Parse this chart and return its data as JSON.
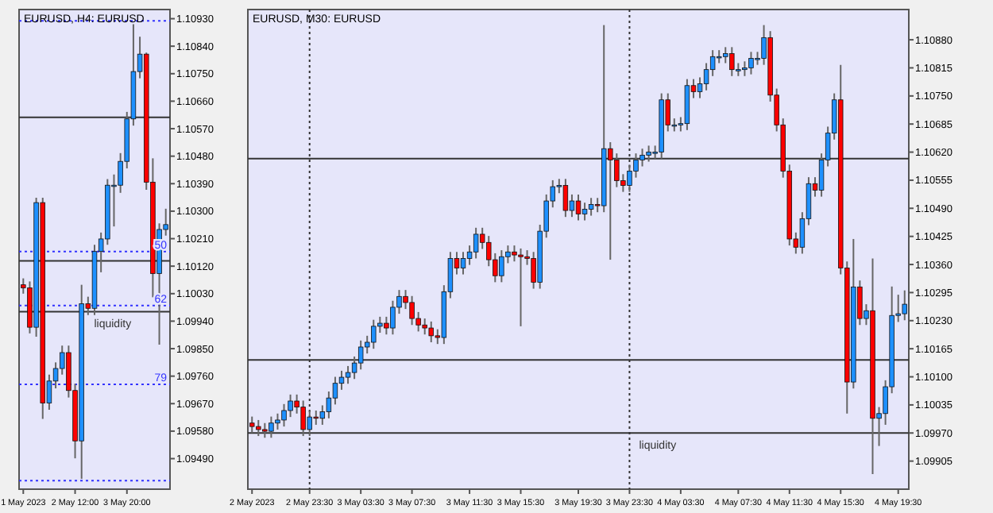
{
  "chart_data": [
    {
      "type": "candlestick",
      "title": "EURUSD, H4: EURUSD",
      "colors": [
        "#ff0000",
        "#ff0000",
        "#1e90ff",
        "#ff0000",
        "#1e90ff",
        "#1e90ff",
        "#1e90ff",
        "#ff0000",
        "#ff0000",
        "#1e90ff",
        "#ff0000",
        "#1e90ff",
        "#1e90ff",
        "#1e90ff",
        "#1e90ff",
        "#1e90ff",
        "#1e90ff",
        "#1e90ff",
        "#1e90ff",
        "#ff0000",
        "#ff0000",
        "#1e90ff",
        "#1e90ff"
      ],
      "annotations": [
        {
          "text": "50",
          "y": 1.10168
        },
        {
          "text": "62",
          "y": 1.09991
        },
        {
          "text": "79",
          "y": 1.09733
        }
      ],
      "categories": [
        "1 May 2023",
        null,
        null,
        null,
        null,
        null,
        null,
        null,
        "2 May 12:00",
        null,
        null,
        null,
        null,
        null,
        null,
        null,
        "3 May 20:00",
        null,
        null,
        null,
        null,
        null,
        null
      ],
      "ohlc": [
        [
          1.10059,
          1.1008,
          1.1003,
          1.10049
        ],
        [
          1.10049,
          1.1007,
          1.099,
          1.0992
        ],
        [
          1.0992,
          1.10344,
          1.09889,
          1.10328
        ],
        [
          1.10328,
          1.10344,
          1.0962,
          1.09672
        ],
        [
          1.09672,
          1.09765,
          1.0965,
          1.09744
        ],
        [
          1.09744,
          1.09805,
          1.0972,
          1.09785
        ],
        [
          1.09785,
          1.0986,
          1.09765,
          1.09837
        ],
        [
          1.09837,
          1.0986,
          1.0969,
          1.09713
        ],
        [
          1.09713,
          1.09735,
          1.09491,
          1.09548
        ],
        [
          1.09548,
          1.10059,
          1.09424,
          1.09997
        ],
        [
          1.09997,
          1.1002,
          1.0996,
          1.09982
        ],
        [
          1.09982,
          1.1019,
          1.0996,
          1.10168
        ],
        [
          1.10168,
          1.1023,
          1.101,
          1.10209
        ],
        [
          1.10209,
          1.10405,
          1.1019,
          1.10385
        ],
        [
          1.10385,
          1.1042,
          1.1025,
          1.10385
        ],
        [
          1.10385,
          1.1049,
          1.1036,
          1.10463
        ],
        [
          1.10463,
          1.10625,
          1.1044,
          1.10602
        ],
        [
          1.10602,
          1.10912,
          1.1058,
          1.10757
        ],
        [
          1.10757,
          1.10871,
          1.10735,
          1.10814
        ],
        [
          1.10814,
          1.10819,
          1.1037,
          1.10395
        ],
        [
          1.10395,
          1.10473,
          1.10018,
          1.10096
        ],
        [
          1.10096,
          1.1026,
          1.09863,
          1.1024
        ],
        [
          1.1024,
          1.10308,
          1.1022,
          1.10256
        ]
      ],
      "ylim": [
        1.0939,
        1.1096
      ],
      "yticks": [
        {
          "value": 1.0949,
          "label": "1.09490"
        },
        {
          "value": 1.0958,
          "label": "1.09580"
        },
        {
          "value": 1.0967,
          "label": "1.09670"
        },
        {
          "value": 1.0976,
          "label": "1.09760"
        },
        {
          "value": 1.0985,
          "label": "1.09850"
        },
        {
          "value": 1.0994,
          "label": "1.09940"
        },
        {
          "value": 1.1003,
          "label": "1.10030"
        },
        {
          "value": 1.1012,
          "label": "1.10120"
        },
        {
          "value": 1.1021,
          "label": "1.10210"
        },
        {
          "value": 1.103,
          "label": "1.10300"
        },
        {
          "value": 1.1039,
          "label": "1.10390"
        },
        {
          "value": 1.1048,
          "label": "1.10480"
        },
        {
          "value": 1.1057,
          "label": "1.10570"
        },
        {
          "value": 1.1066,
          "label": "1.10660"
        },
        {
          "value": 1.1075,
          "label": "1.10750"
        },
        {
          "value": 1.1084,
          "label": "1.10840"
        },
        {
          "value": 1.1093,
          "label": "1.10930"
        }
      ],
      "ref_lines": [
        {
          "axis": "y",
          "value": 1.10607,
          "color": "#333333",
          "line_style": "solid"
        },
        {
          "axis": "y",
          "value": 1.10137,
          "color": "#333333",
          "line_style": "solid"
        },
        {
          "axis": "y",
          "value": 1.09971,
          "label": "liquidity",
          "color": "#333333",
          "line_style": "solid"
        },
        {
          "axis": "y",
          "value": 1.10923,
          "color": "#3333ff",
          "line_style": "dotted"
        },
        {
          "axis": "y",
          "value": 1.10168,
          "color": "#3333ff",
          "line_style": "dotted"
        },
        {
          "axis": "y",
          "value": 1.09991,
          "color": "#3333ff",
          "line_style": "dotted"
        },
        {
          "axis": "y",
          "value": 1.09733,
          "color": "#3333ff",
          "line_style": "dotted"
        },
        {
          "axis": "y",
          "value": 1.09418,
          "color": "#3333ff",
          "line_style": "dotted"
        }
      ]
    },
    {
      "type": "candlestick",
      "title": "EURUSD, M30: EURUSD",
      "colors": [
        "#ff0000",
        "#ff0000",
        "#ff0000",
        "#1e90ff",
        "#1e90ff",
        "#1e90ff",
        "#1e90ff",
        "#ff0000",
        "#ff0000",
        "#1e90ff",
        "#ff0000",
        "#1e90ff",
        "#1e90ff",
        "#1e90ff",
        "#1e90ff",
        "#1e90ff",
        "#1e90ff",
        "#1e90ff",
        "#1e90ff",
        "#1e90ff",
        "#1e90ff",
        "#ff0000",
        "#1e90ff",
        "#1e90ff",
        "#ff0000",
        "#ff0000",
        "#ff0000",
        "#ff0000",
        "#ff0000",
        "#ff0000",
        "#1e90ff",
        "#1e90ff",
        "#ff0000",
        "#1e90ff",
        "#1e90ff",
        "#1e90ff",
        "#ff0000",
        "#ff0000",
        "#ff0000",
        "#1e90ff",
        "#1e90ff",
        "#ff0000",
        "#ff0000",
        "#ff0000",
        "#ff0000",
        "#1e90ff",
        "#1e90ff",
        "#1e90ff",
        "#1e90ff",
        "#ff0000",
        "#1e90ff",
        "#ff0000",
        "#1e90ff",
        "#1e90ff",
        "#ff0000",
        "#1e90ff",
        "#ff0000",
        "#ff0000",
        "#ff0000",
        "#1e90ff",
        "#1e90ff",
        "#1e90ff",
        "#1e90ff",
        "#1e90ff",
        "#1e90ff",
        "#ff0000",
        "#1e90ff",
        "#1e90ff",
        "#1e90ff",
        "#ff0000",
        "#1e90ff",
        "#1e90ff",
        "#1e90ff",
        "#1e90ff",
        "#1e90ff",
        "#ff0000",
        "#1e90ff",
        "#1e90ff",
        "#1e90ff",
        "#1e90ff",
        "#1e90ff",
        "#ff0000",
        "#ff0000",
        "#ff0000",
        "#ff0000",
        "#ff0000",
        "#1e90ff",
        "#1e90ff",
        "#ff0000",
        "#1e90ff",
        "#1e90ff",
        "#1e90ff",
        "#ff0000",
        "#ff0000",
        "#1e90ff",
        "#ff0000",
        "#1e90ff",
        "#ff0000",
        "#1e90ff",
        "#1e90ff",
        "#1e90ff",
        "#1e90ff",
        "#1e90ff"
      ],
      "categories": [
        "2 May 2023",
        null,
        null,
        null,
        null,
        null,
        null,
        null,
        null,
        "2 May 23:30",
        null,
        null,
        null,
        null,
        null,
        null,
        null,
        "3 May 03:30",
        null,
        null,
        null,
        null,
        null,
        null,
        null,
        "3 May 07:30",
        null,
        null,
        null,
        null,
        null,
        null,
        null,
        null,
        "3 May 11:30",
        null,
        null,
        null,
        null,
        null,
        null,
        null,
        "3 May 15:30",
        null,
        null,
        null,
        null,
        null,
        null,
        null,
        null,
        "3 May 19:30",
        null,
        null,
        null,
        null,
        null,
        null,
        null,
        "3 May 23:30",
        null,
        null,
        null,
        null,
        null,
        null,
        null,
        "4 May 03:30",
        null,
        null,
        null,
        null,
        null,
        null,
        null,
        null,
        "4 May 07:30",
        null,
        null,
        null,
        null,
        null,
        null,
        null,
        "4 May 11:30",
        null,
        null,
        null,
        null,
        null,
        null,
        null,
        "4 May 15:30",
        null,
        null,
        null,
        null,
        null,
        null,
        null,
        null,
        "4 May 19:30",
        null
      ],
      "ohlc": [
        [
          1.09993,
          1.10008,
          1.0997,
          1.09985
        ],
        [
          1.09985,
          1.1,
          1.09963,
          1.09978
        ],
        [
          1.09978,
          1.09993,
          1.09959,
          1.09974
        ],
        [
          1.09974,
          1.10008,
          1.09959,
          1.09993
        ],
        [
          1.09993,
          1.10015,
          1.09978,
          1.1
        ],
        [
          1.1,
          1.10037,
          1.09985,
          1.10022
        ],
        [
          1.10022,
          1.10059,
          1.10007,
          1.10044
        ],
        [
          1.10044,
          1.10059,
          1.10015,
          1.1003
        ],
        [
          1.1003,
          1.10045,
          1.09963,
          1.09978
        ],
        [
          1.09978,
          1.10022,
          1.09963,
          1.10007
        ],
        [
          1.10007,
          1.10022,
          1.09989,
          1.10004
        ],
        [
          1.10004,
          1.10034,
          1.09989,
          1.10019
        ],
        [
          1.10019,
          1.10066,
          1.10004,
          1.10051
        ],
        [
          1.10051,
          1.101,
          1.10036,
          1.10085
        ],
        [
          1.10085,
          1.10114,
          1.1007,
          1.10099
        ],
        [
          1.10099,
          1.10125,
          1.10084,
          1.1011
        ],
        [
          1.1011,
          1.10147,
          1.10095,
          1.10132
        ],
        [
          1.10132,
          1.10184,
          1.10117,
          1.10169
        ],
        [
          1.10169,
          1.10195,
          1.10154,
          1.1018
        ],
        [
          1.1018,
          1.10232,
          1.10165,
          1.10217
        ],
        [
          1.10217,
          1.10239,
          1.10202,
          1.10224
        ],
        [
          1.10224,
          1.10239,
          1.10198,
          1.10213
        ],
        [
          1.10213,
          1.10276,
          1.10198,
          1.10261
        ],
        [
          1.10261,
          1.10301,
          1.10246,
          1.10286
        ],
        [
          1.10286,
          1.10301,
          1.10257,
          1.10272
        ],
        [
          1.10272,
          1.10287,
          1.1022,
          1.10235
        ],
        [
          1.10235,
          1.1025,
          1.10205,
          1.1022
        ],
        [
          1.1022,
          1.10235,
          1.10198,
          1.10213
        ],
        [
          1.10213,
          1.10228,
          1.1018,
          1.10195
        ],
        [
          1.10195,
          1.1021,
          1.10176,
          1.10191
        ],
        [
          1.10191,
          1.10312,
          1.10176,
          1.10297
        ],
        [
          1.10297,
          1.10389,
          1.10282,
          1.10374
        ],
        [
          1.10374,
          1.10389,
          1.10337,
          1.10352
        ],
        [
          1.10352,
          1.10389,
          1.10337,
          1.10374
        ],
        [
          1.10374,
          1.10404,
          1.10359,
          1.10389
        ],
        [
          1.10389,
          1.10445,
          1.10374,
          1.1043
        ],
        [
          1.1043,
          1.10445,
          1.10396,
          1.10411
        ],
        [
          1.10411,
          1.10426,
          1.10356,
          1.10371
        ],
        [
          1.10371,
          1.10386,
          1.10319,
          1.10334
        ],
        [
          1.10334,
          1.10393,
          1.10319,
          1.10378
        ],
        [
          1.10378,
          1.10404,
          1.10363,
          1.10389
        ],
        [
          1.10389,
          1.10404,
          1.10367,
          1.10382
        ],
        [
          1.10382,
          1.10397,
          1.10217,
          1.10378
        ],
        [
          1.10378,
          1.10393,
          1.10359,
          1.10374
        ],
        [
          1.10374,
          1.10389,
          1.10304,
          1.10319
        ],
        [
          1.10319,
          1.10452,
          1.10304,
          1.10437
        ],
        [
          1.10437,
          1.10522,
          1.10422,
          1.10507
        ],
        [
          1.10507,
          1.10555,
          1.10492,
          1.1054
        ],
        [
          1.1054,
          1.10558,
          1.10525,
          1.10543
        ],
        [
          1.10543,
          1.10558,
          1.1047,
          1.10485
        ],
        [
          1.10485,
          1.10522,
          1.1047,
          1.10507
        ],
        [
          1.10507,
          1.10522,
          1.10462,
          1.10477
        ],
        [
          1.10477,
          1.10503,
          1.10462,
          1.10488
        ],
        [
          1.10488,
          1.10514,
          1.10473,
          1.10499
        ],
        [
          1.10499,
          1.10514,
          1.10481,
          1.10496
        ],
        [
          1.10496,
          1.10914,
          1.10481,
          1.10628
        ],
        [
          1.10628,
          1.10643,
          1.10371,
          1.10602
        ],
        [
          1.10602,
          1.10617,
          1.10539,
          1.10554
        ],
        [
          1.10554,
          1.10569,
          1.10528,
          1.10543
        ],
        [
          1.10543,
          1.10591,
          1.10528,
          1.10576
        ],
        [
          1.10576,
          1.10617,
          1.10561,
          1.10602
        ],
        [
          1.10602,
          1.10628,
          1.10587,
          1.10613
        ],
        [
          1.10613,
          1.10635,
          1.10598,
          1.1062
        ],
        [
          1.1062,
          1.10635,
          1.10605,
          1.1062
        ],
        [
          1.1062,
          1.10756,
          1.10605,
          1.10741
        ],
        [
          1.10741,
          1.10756,
          1.10668,
          1.10683
        ],
        [
          1.10683,
          1.10698,
          1.10668,
          1.10683
        ],
        [
          1.10683,
          1.10701,
          1.10668,
          1.10686
        ],
        [
          1.10686,
          1.10789,
          1.10671,
          1.10774
        ],
        [
          1.10774,
          1.10789,
          1.10745,
          1.1076
        ],
        [
          1.1076,
          1.10793,
          1.10745,
          1.10778
        ],
        [
          1.10778,
          1.10826,
          1.10763,
          1.10811
        ],
        [
          1.10811,
          1.10856,
          1.10796,
          1.10841
        ],
        [
          1.10841,
          1.10856,
          1.10826,
          1.10841
        ],
        [
          1.10841,
          1.10863,
          1.10826,
          1.10848
        ],
        [
          1.10848,
          1.10863,
          1.10796,
          1.10811
        ],
        [
          1.10811,
          1.10826,
          1.10796,
          1.10811
        ],
        [
          1.10811,
          1.1083,
          1.10796,
          1.10815
        ],
        [
          1.10815,
          1.10852,
          1.108,
          1.10837
        ],
        [
          1.10837,
          1.10852,
          1.10822,
          1.10837
        ],
        [
          1.10837,
          1.10914,
          1.10822,
          1.10885
        ],
        [
          1.10885,
          1.109,
          1.10737,
          1.10752
        ],
        [
          1.10752,
          1.10767,
          1.10668,
          1.10683
        ],
        [
          1.10683,
          1.10698,
          1.10561,
          1.10576
        ],
        [
          1.10576,
          1.10591,
          1.10404,
          1.10419
        ],
        [
          1.10419,
          1.10434,
          1.10385,
          1.104
        ],
        [
          1.104,
          1.10481,
          1.10385,
          1.10466
        ],
        [
          1.10466,
          1.10562,
          1.10451,
          1.10547
        ],
        [
          1.10547,
          1.10562,
          1.10517,
          1.10532
        ],
        [
          1.10532,
          1.10617,
          1.10517,
          1.10602
        ],
        [
          1.10602,
          1.10679,
          1.10587,
          1.10664
        ],
        [
          1.10664,
          1.10756,
          1.10649,
          1.10741
        ],
        [
          1.10741,
          1.10822,
          1.10337,
          1.10352
        ],
        [
          1.10352,
          1.10367,
          1.10015,
          1.10088
        ],
        [
          1.10088,
          1.10419,
          1.10073,
          1.10308
        ],
        [
          1.10308,
          1.10323,
          1.1022,
          1.10235
        ],
        [
          1.10235,
          1.10268,
          1.1022,
          1.10253
        ],
        [
          1.10253,
          1.10374,
          1.09875,
          1.10004
        ],
        [
          1.10004,
          1.1003,
          1.0994,
          1.10015
        ],
        [
          1.10015,
          1.10092,
          1.09989,
          1.10077
        ],
        [
          1.10077,
          1.10309,
          1.10062,
          1.10242
        ],
        [
          1.10242,
          1.1029,
          1.10227,
          1.10246
        ],
        [
          1.10246,
          1.103,
          1.10231,
          1.10268
        ]
      ],
      "ylim": [
        1.0984,
        1.1095
      ],
      "yticks": [
        {
          "value": 1.09905,
          "label": "1.09905"
        },
        {
          "value": 1.0997,
          "label": "1.09970"
        },
        {
          "value": 1.10035,
          "label": "1.10035"
        },
        {
          "value": 1.101,
          "label": "1.10100"
        },
        {
          "value": 1.10165,
          "label": "1.10165"
        },
        {
          "value": 1.1023,
          "label": "1.10230"
        },
        {
          "value": 1.10295,
          "label": "1.10295"
        },
        {
          "value": 1.1036,
          "label": "1.10360"
        },
        {
          "value": 1.10425,
          "label": "1.10425"
        },
        {
          "value": 1.1049,
          "label": "1.10490"
        },
        {
          "value": 1.10555,
          "label": "1.10555"
        },
        {
          "value": 1.1062,
          "label": "1.10620"
        },
        {
          "value": 1.10685,
          "label": "1.10685"
        },
        {
          "value": 1.1075,
          "label": "1.10750"
        },
        {
          "value": 1.10815,
          "label": "1.10815"
        },
        {
          "value": 1.1088,
          "label": "1.10880"
        }
      ],
      "ref_lines": [
        {
          "axis": "y",
          "value": 1.10605,
          "color": "#333333",
          "line_style": "solid"
        },
        {
          "axis": "y",
          "value": 1.10139,
          "color": "#333333",
          "line_style": "solid"
        },
        {
          "axis": "y",
          "value": 1.0997,
          "label": "liquidity",
          "color": "#333333",
          "line_style": "solid"
        },
        {
          "axis": "x",
          "value": "2 May 23:30",
          "color": "#333333",
          "line_style": "dotted"
        },
        {
          "axis": "x",
          "value": "3 May 23:30",
          "color": "#333333",
          "line_style": "dotted"
        }
      ]
    }
  ]
}
